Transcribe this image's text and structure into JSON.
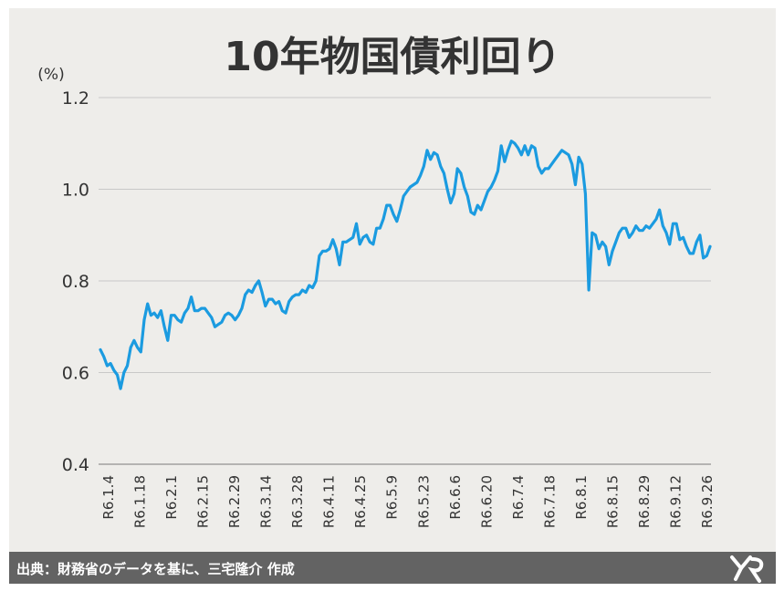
{
  "footer": {
    "source": "出典：財務省のデータを基に、三宅隆介 作成"
  },
  "colors": {
    "background": "#eeedea",
    "line": "#1b9be0",
    "grid": "#c8c8c8",
    "footer": "#636363",
    "text": "#333333"
  },
  "chart_data": {
    "type": "line",
    "title": "10年物国債利回り",
    "ylabel": "(%)",
    "xlabel": "",
    "ylim": [
      0.4,
      1.2
    ],
    "yticks": [
      "0.4",
      "0.6",
      "0.8",
      "1.0",
      "1.2"
    ],
    "grid": true,
    "legend": "none",
    "xticks": [
      "R6.1.4",
      "R6.1.18",
      "R6.2.1",
      "R6.2.15",
      "R6.2.29",
      "R6.3.14",
      "R6.3.28",
      "R6.4.11",
      "R6.4.25",
      "R6.5.9",
      "R6.5.23",
      "R6.6.6",
      "R6.6.20",
      "R6.7.4",
      "R6.7.18",
      "R6.8.1",
      "R6.8.15",
      "R6.8.29",
      "R6.9.12",
      "R6.9.26"
    ],
    "series": [
      {
        "values": [
          0.65,
          0.635,
          0.615,
          0.62,
          0.605,
          0.595,
          0.565,
          0.6,
          0.615,
          0.655,
          0.67,
          0.655,
          0.645,
          0.715,
          0.75,
          0.725,
          0.73,
          0.72,
          0.735,
          0.7,
          0.67,
          0.725,
          0.725,
          0.715,
          0.71,
          0.73,
          0.74,
          0.765,
          0.735,
          0.735,
          0.74,
          0.74,
          0.73,
          0.72,
          0.7,
          0.705,
          0.71,
          0.725,
          0.73,
          0.725,
          0.715,
          0.725,
          0.74,
          0.77,
          0.78,
          0.775,
          0.79,
          0.8,
          0.775,
          0.745,
          0.76,
          0.76,
          0.75,
          0.755,
          0.735,
          0.73,
          0.755,
          0.765,
          0.77,
          0.77,
          0.78,
          0.775,
          0.79,
          0.785,
          0.8,
          0.855,
          0.865,
          0.865,
          0.87,
          0.89,
          0.87,
          0.835,
          0.885,
          0.885,
          0.89,
          0.895,
          0.925,
          0.88,
          0.895,
          0.9,
          0.885,
          0.88,
          0.915,
          0.915,
          0.935,
          0.965,
          0.965,
          0.945,
          0.93,
          0.955,
          0.985,
          0.995,
          1.005,
          1.01,
          1.015,
          1.03,
          1.05,
          1.085,
          1.065,
          1.08,
          1.075,
          1.05,
          1.035,
          1.0,
          0.97,
          0.99,
          1.045,
          1.035,
          1.005,
          0.985,
          0.95,
          0.945,
          0.965,
          0.955,
          0.975,
          0.995,
          1.005,
          1.02,
          1.04,
          1.095,
          1.06,
          1.085,
          1.105,
          1.1,
          1.09,
          1.075,
          1.095,
          1.075,
          1.095,
          1.09,
          1.05,
          1.035,
          1.045,
          1.045,
          1.055,
          1.065,
          1.075,
          1.085,
          1.08,
          1.075,
          1.055,
          1.01,
          1.07,
          1.055,
          0.99,
          0.78,
          0.905,
          0.9,
          0.87,
          0.885,
          0.875,
          0.835,
          0.865,
          0.885,
          0.905,
          0.915,
          0.915,
          0.895,
          0.905,
          0.92,
          0.91,
          0.91,
          0.92,
          0.915,
          0.925,
          0.935,
          0.955,
          0.92,
          0.905,
          0.88,
          0.925,
          0.925,
          0.89,
          0.895,
          0.875,
          0.86,
          0.86,
          0.885,
          0.9,
          0.85,
          0.855,
          0.875
        ]
      }
    ]
  }
}
